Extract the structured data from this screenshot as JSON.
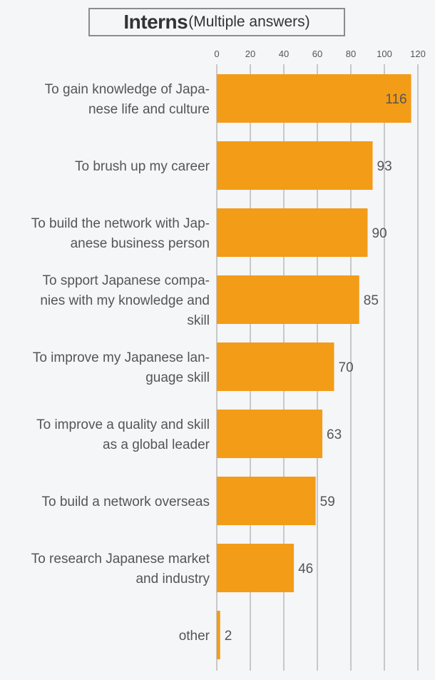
{
  "title": {
    "main": "Interns",
    "sub": "(Multiple answers)"
  },
  "colors": {
    "bar": "#f39c18",
    "grid": "#9a9a9a",
    "text": "#555555"
  },
  "chart_data": {
    "type": "bar",
    "orientation": "horizontal",
    "title": "Interns(Multiple answers)",
    "categories": [
      [
        "To gain knowledge of Japa-",
        "nese life and culture"
      ],
      [
        "To brush up my career"
      ],
      [
        "To build the network with Jap-",
        "anese business person"
      ],
      [
        "To spport Japanese compa-",
        "nies with my knowledge and",
        "skill"
      ],
      [
        "To improve my Japanese lan-",
        "guage skill"
      ],
      [
        "To improve a quality and skill",
        "as a global leader"
      ],
      [
        "To build a network overseas"
      ],
      [
        "To research Japanese market",
        "and industry"
      ],
      [
        "other"
      ]
    ],
    "values": [
      116,
      93,
      90,
      85,
      70,
      63,
      59,
      46,
      2
    ],
    "xlim": [
      0,
      120
    ],
    "xticks": [
      0,
      20,
      40,
      60,
      80,
      100,
      120
    ],
    "xaxis_position": "top",
    "grid": true,
    "xlabel": "",
    "ylabel": ""
  }
}
